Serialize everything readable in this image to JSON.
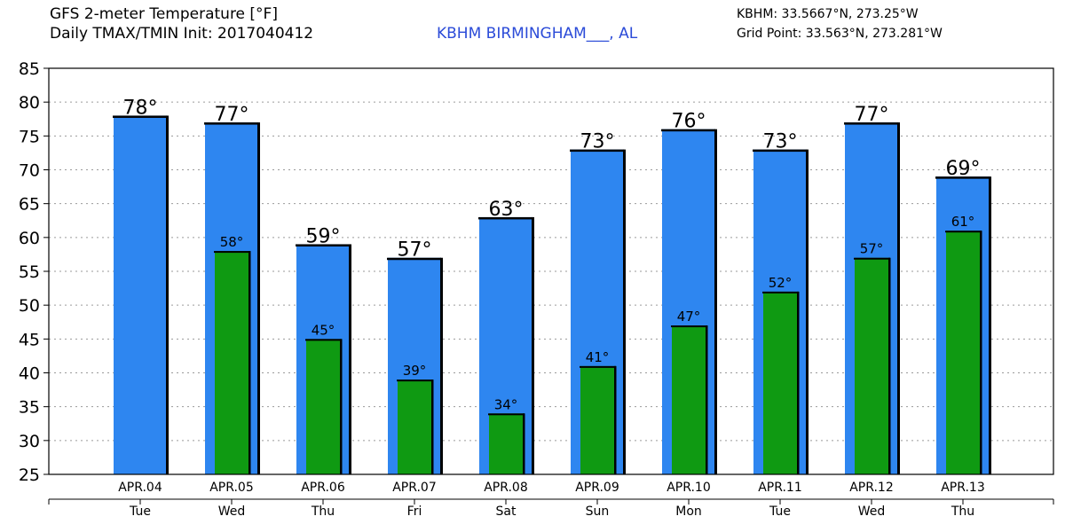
{
  "header": {
    "title_line1": "GFS 2-meter Temperature [°F]",
    "title_line2": "Daily TMAX/TMIN Init: 2017040412",
    "station": "KBHM BIRMINGHAM___, AL",
    "station_coords": "KBHM: 33.5667°N, 273.25°W",
    "grid_point": "Grid Point: 33.563°N, 273.281°W"
  },
  "colors": {
    "tmax": "#2e86f0",
    "tmin": "#0f9a12",
    "grid": "#9a9a9a",
    "edge": "#000000"
  },
  "chart_data": {
    "type": "bar",
    "categories": [
      "APR.04",
      "APR.05",
      "APR.06",
      "APR.07",
      "APR.08",
      "APR.09",
      "APR.10",
      "APR.11",
      "APR.12",
      "APR.13"
    ],
    "weekdays": [
      "Tue",
      "Wed",
      "Thu",
      "Fri",
      "Sat",
      "Sun",
      "Mon",
      "Tue",
      "Wed",
      "Thu"
    ],
    "series": [
      {
        "values": [
          78,
          77,
          59,
          57,
          63,
          73,
          76,
          73,
          77,
          69
        ],
        "labels": [
          "78°",
          "77°",
          "59°",
          "57°",
          "63°",
          "73°",
          "76°",
          "73°",
          "77°",
          "69°"
        ]
      },
      {
        "values": [
          null,
          58,
          45,
          39,
          34,
          41,
          47,
          52,
          57,
          61
        ],
        "labels": [
          "",
          "58°",
          "45°",
          "39°",
          "34°",
          "41°",
          "47°",
          "52°",
          "57°",
          "61°"
        ]
      }
    ],
    "ylim": [
      25,
      85
    ],
    "yticks": [
      25,
      30,
      35,
      40,
      45,
      50,
      55,
      60,
      65,
      70,
      75,
      80,
      85
    ],
    "grid": true
  }
}
